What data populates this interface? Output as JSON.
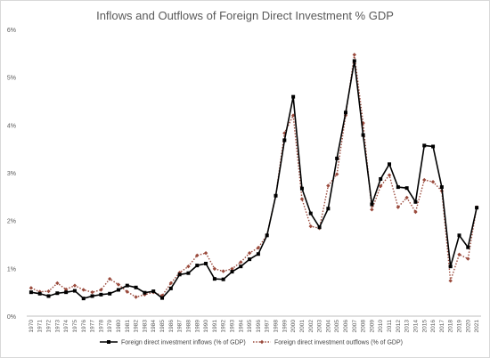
{
  "chart_data": {
    "type": "line",
    "title": "Inflows and Outflows of Foreign Direct Investment % GDP",
    "xlabel": "",
    "ylabel": "",
    "ylim": [
      0,
      6
    ],
    "yticks": [
      "0%",
      "1%",
      "2%",
      "3%",
      "4%",
      "5%",
      "6%"
    ],
    "grid": false,
    "legend_position": "bottom",
    "categories": [
      "1970",
      "1971",
      "1972",
      "1973",
      "1974",
      "1975",
      "1976",
      "1977",
      "1978",
      "1979",
      "1980",
      "1981",
      "1982",
      "1983",
      "1984",
      "1985",
      "1986",
      "1987",
      "1988",
      "1989",
      "1990",
      "1991",
      "1992",
      "1993",
      "1994",
      "1995",
      "1996",
      "1997",
      "1998",
      "1999",
      "2000",
      "2001",
      "2002",
      "2003",
      "2004",
      "2005",
      "2006",
      "2007",
      "2008",
      "2009",
      "2010",
      "2011",
      "2012",
      "2013",
      "2014",
      "2015",
      "2016",
      "2017",
      "2018",
      "2019",
      "2020",
      "2021"
    ],
    "series": [
      {
        "name": "Foreign direct investment inflows (% of GDP)",
        "color": "#000000",
        "style": "solid",
        "marker": "square",
        "values": [
          0.5,
          0.47,
          0.42,
          0.48,
          0.5,
          0.53,
          0.37,
          0.42,
          0.45,
          0.47,
          0.55,
          0.64,
          0.6,
          0.49,
          0.52,
          0.38,
          0.58,
          0.87,
          0.9,
          1.06,
          1.1,
          0.78,
          0.77,
          0.93,
          1.04,
          1.19,
          1.3,
          1.69,
          2.52,
          3.68,
          4.59,
          2.67,
          2.15,
          1.86,
          2.25,
          3.3,
          4.26,
          5.34,
          3.79,
          2.34,
          2.87,
          3.18,
          2.7,
          2.68,
          2.39,
          3.57,
          3.55,
          2.7,
          1.04,
          1.69,
          1.44,
          2.27
        ]
      },
      {
        "name": "Foreign direct investment outflows (% of GDP)",
        "color": "#9a4a3c",
        "style": "dotted",
        "marker": "diamond",
        "values": [
          0.59,
          0.51,
          0.52,
          0.69,
          0.56,
          0.64,
          0.55,
          0.5,
          0.55,
          0.78,
          0.66,
          0.51,
          0.4,
          0.45,
          0.5,
          0.43,
          0.69,
          0.91,
          1.04,
          1.27,
          1.32,
          0.99,
          0.94,
          0.99,
          1.13,
          1.32,
          1.43,
          1.7,
          2.52,
          3.83,
          4.2,
          2.45,
          1.88,
          1.84,
          2.73,
          2.97,
          4.2,
          5.47,
          4.04,
          2.23,
          2.72,
          2.95,
          2.28,
          2.48,
          2.18,
          2.85,
          2.81,
          2.62,
          0.74,
          1.29,
          1.2,
          2.28
        ]
      }
    ]
  }
}
